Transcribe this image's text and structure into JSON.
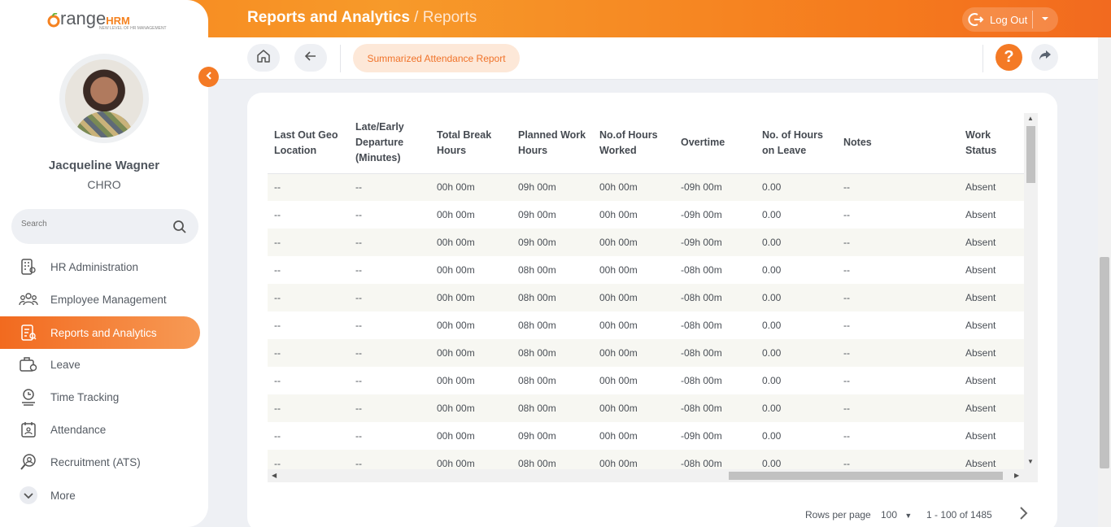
{
  "header": {
    "title": "Reports and Analytics",
    "separator": " / ",
    "subtitle": "Reports",
    "logout_label": "Log Out"
  },
  "subheader": {
    "report_chip": "Summarized Attendance Report",
    "help_label": "?"
  },
  "sidebar": {
    "user_name": "Jacqueline Wagner",
    "user_role": "CHRO",
    "search_placeholder": "Search",
    "items": [
      {
        "label": "HR Administration",
        "icon": "building-icon"
      },
      {
        "label": "Employee Management",
        "icon": "people-icon"
      },
      {
        "label": "Reports and Analytics",
        "icon": "report-icon",
        "active": true
      },
      {
        "label": "Leave",
        "icon": "leave-icon"
      },
      {
        "label": "Time Tracking",
        "icon": "clock-icon"
      },
      {
        "label": "Attendance",
        "icon": "calendar-icon"
      },
      {
        "label": "Recruitment (ATS)",
        "icon": "recruit-icon"
      },
      {
        "label": "More",
        "icon": "chevron-down-icon"
      }
    ]
  },
  "table": {
    "columns": [
      "Last Out Geo Location",
      "Late/Early Departure (Minutes)",
      "Total Break Hours",
      "Planned Work Hours",
      "No.of Hours Worked",
      "Overtime",
      "No. of Hours on Leave",
      "Notes",
      "Work Status"
    ],
    "rows": [
      [
        "--",
        "--",
        "00h 00m",
        "09h 00m",
        "00h 00m",
        "-09h 00m",
        "0.00",
        "--",
        "Absent"
      ],
      [
        "--",
        "--",
        "00h 00m",
        "09h 00m",
        "00h 00m",
        "-09h 00m",
        "0.00",
        "--",
        "Absent"
      ],
      [
        "--",
        "--",
        "00h 00m",
        "09h 00m",
        "00h 00m",
        "-09h 00m",
        "0.00",
        "--",
        "Absent"
      ],
      [
        "--",
        "--",
        "00h 00m",
        "08h 00m",
        "00h 00m",
        "-08h 00m",
        "0.00",
        "--",
        "Absent"
      ],
      [
        "--",
        "--",
        "00h 00m",
        "08h 00m",
        "00h 00m",
        "-08h 00m",
        "0.00",
        "--",
        "Absent"
      ],
      [
        "--",
        "--",
        "00h 00m",
        "08h 00m",
        "00h 00m",
        "-08h 00m",
        "0.00",
        "--",
        "Absent"
      ],
      [
        "--",
        "--",
        "00h 00m",
        "08h 00m",
        "00h 00m",
        "-08h 00m",
        "0.00",
        "--",
        "Absent"
      ],
      [
        "--",
        "--",
        "00h 00m",
        "08h 00m",
        "00h 00m",
        "-08h 00m",
        "0.00",
        "--",
        "Absent"
      ],
      [
        "--",
        "--",
        "00h 00m",
        "08h 00m",
        "00h 00m",
        "-08h 00m",
        "0.00",
        "--",
        "Absent"
      ],
      [
        "--",
        "--",
        "00h 00m",
        "09h 00m",
        "00h 00m",
        "-09h 00m",
        "0.00",
        "--",
        "Absent"
      ],
      [
        "--",
        "--",
        "00h 00m",
        "08h 00m",
        "00h 00m",
        "-08h 00m",
        "0.00",
        "--",
        "Absent"
      ]
    ]
  },
  "pagination": {
    "rows_per_page_label": "Rows per page",
    "rows_per_page": "100",
    "range": "1 - 100 of 1485"
  },
  "colors": {
    "accent": "#f47a25",
    "chip_bg": "#fde8d8"
  }
}
